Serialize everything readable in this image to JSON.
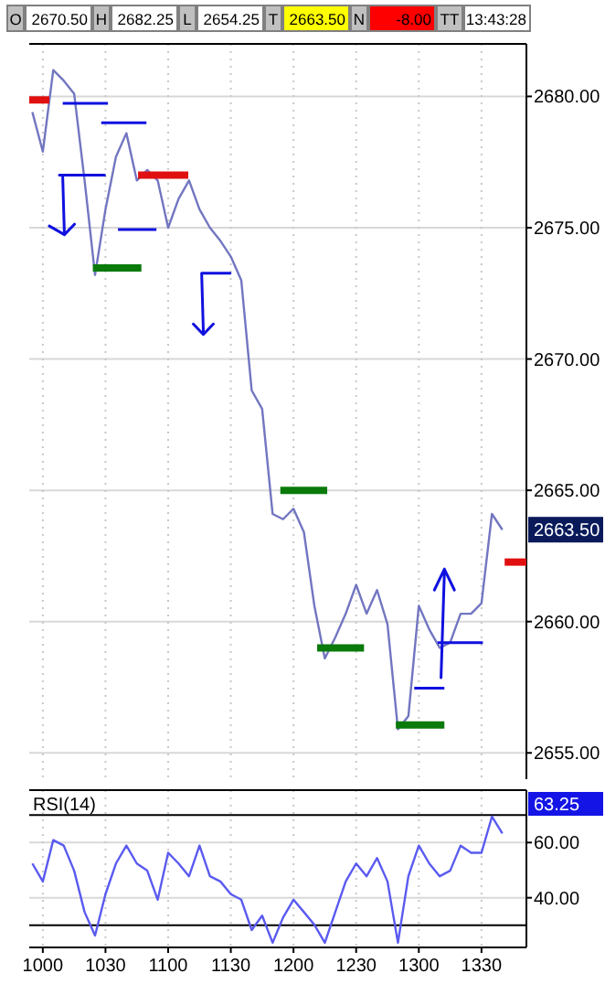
{
  "chart_data": [
    {
      "type": "line",
      "annotations": [
        "O",
        "2670.50",
        "H",
        "2682.25",
        "L",
        "2654.25",
        "T",
        "2663.50",
        "N",
        "-8.00",
        "TT",
        "13:43:28",
        "2663.50"
      ],
      "categories": [
        null,
        "1000",
        null,
        null,
        null,
        null,
        null,
        "1030",
        null,
        null,
        null,
        null,
        null,
        "1100",
        null,
        null,
        null,
        null,
        null,
        "1130",
        null,
        null,
        null,
        null,
        null,
        "1200",
        null,
        null,
        null,
        null,
        null,
        "1230",
        null,
        null,
        null,
        null,
        null,
        "1300",
        null,
        null,
        null,
        null,
        null,
        "1330",
        null,
        null,
        null,
        null
      ],
      "ylim": [
        2654,
        2682
      ],
      "yticks": [
        {
          "value": 2655,
          "label": "2655.00"
        },
        {
          "value": 2660,
          "label": "2660.00"
        },
        {
          "value": 2665,
          "label": "2665.00"
        },
        {
          "value": 2670,
          "label": "2670.00"
        },
        {
          "value": 2675,
          "label": "2675.00"
        },
        {
          "value": 2680,
          "label": "2680.00"
        }
      ],
      "tick_labels": "y",
      "grid": true,
      "series": [
        {
          "color": "#7276c0",
          "values": [
            2679.4,
            2677.9,
            2681,
            2680.6,
            2680.1,
            2676.8,
            2673.2,
            2675.7,
            2677.7,
            2678.6,
            2676.8,
            2677.2,
            2676.8,
            2675,
            2676.1,
            2676.8,
            2675.7,
            2675,
            2674.5,
            2673.9,
            2673,
            2668.8,
            2668.1,
            2664.1,
            2663.9,
            2664.3,
            2663.4,
            2660.6,
            2658.6,
            2659.4,
            2660.3,
            2661.4,
            2660.3,
            2661.2,
            2659.9,
            2655.9,
            2656.4,
            2660.6,
            2659.7,
            2659,
            2659.2,
            2660.3,
            2660.3,
            2660.7,
            2664.1,
            2663.5,
            null,
            null
          ]
        }
      ]
    },
    {
      "type": "line",
      "title": "RSI(14)",
      "annotations": [
        "63.25"
      ],
      "categories": [
        null,
        "1000",
        null,
        null,
        null,
        null,
        null,
        "1030",
        null,
        null,
        null,
        null,
        null,
        "1100",
        null,
        null,
        null,
        null,
        null,
        "1130",
        null,
        null,
        null,
        null,
        null,
        "1200",
        null,
        null,
        null,
        null,
        null,
        "1230",
        null,
        null,
        null,
        null,
        null,
        "1300",
        null,
        null,
        null,
        null,
        null,
        "1330",
        null,
        null,
        null,
        null
      ],
      "ylim": [
        22,
        79
      ],
      "yticks": [
        {
          "value": 40,
          "label": "40.00"
        },
        {
          "value": 60,
          "label": "60.00"
        }
      ],
      "grid": true,
      "ref_lines": [
        {
          "axis": "y",
          "value": 70,
          "color": "#000000"
        },
        {
          "axis": "y",
          "value": 30,
          "color": "#000000"
        }
      ],
      "series": [
        {
          "color": "#5a5af0",
          "values": [
            52.4,
            45.9,
            60.9,
            58.9,
            49.8,
            34.8,
            26.3,
            41.3,
            52.4,
            58.9,
            52.4,
            49.8,
            39.3,
            56.3,
            52.4,
            47.8,
            58.9,
            47.8,
            45.9,
            41.3,
            39.3,
            28.3,
            33.5,
            23.7,
            32.8,
            39.3,
            34.8,
            30.2,
            23.7,
            34.8,
            45.9,
            52.4,
            47.8,
            54.4,
            45.9,
            23.7,
            47.8,
            58.9,
            52.4,
            47.8,
            49.8,
            58.9,
            56.3,
            56.3,
            69.4,
            63.3,
            null,
            null
          ]
        }
      ]
    }
  ]
}
